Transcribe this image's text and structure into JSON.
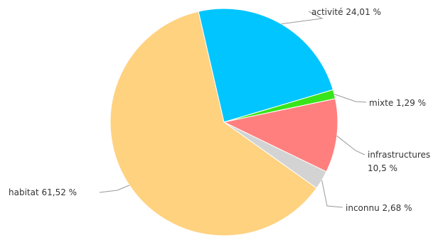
{
  "chart_data": {
    "type": "pie",
    "title": "",
    "slices": [
      {
        "name": "activité",
        "value": 24.01,
        "display": "24,01 %",
        "color": "#00C5FF"
      },
      {
        "name": "mixte",
        "value": 1.29,
        "display": "1,29 %",
        "color": "#38E51A"
      },
      {
        "name": "infrastructures",
        "value": 10.5,
        "display": "10,5 %",
        "color": "#FF7F7F"
      },
      {
        "name": "inconnu",
        "value": 2.68,
        "display": "2,68 %",
        "color": "#D3D3D3"
      },
      {
        "name": "habitat",
        "value": 61.52,
        "display": "61,52 %",
        "color": "#FFD280"
      }
    ],
    "start_angle_deg": 347,
    "direction": "clockwise",
    "legend": "none",
    "labels": "outside-with-leaders"
  }
}
